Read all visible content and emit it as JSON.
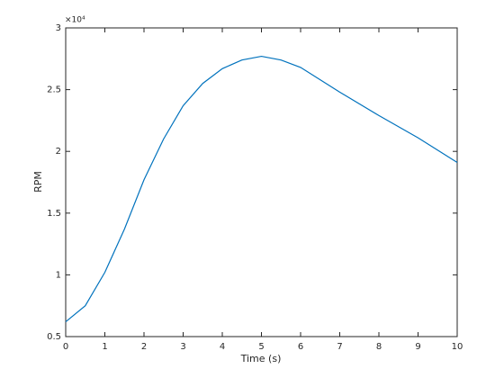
{
  "chart_data": {
    "type": "line",
    "xlabel": "Time (s)",
    "ylabel": "RPM",
    "y_exponent": "×10⁴",
    "x": [
      0,
      0.5,
      1,
      1.5,
      2,
      2.5,
      3,
      3.5,
      4,
      4.5,
      5,
      5.5,
      6,
      6.5,
      7,
      8,
      9,
      10
    ],
    "series": [
      {
        "color": "#0072bd",
        "values": [
          0.62,
          0.75,
          1.02,
          1.37,
          1.77,
          2.1,
          2.37,
          2.55,
          2.67,
          2.74,
          2.77,
          2.74,
          2.68,
          2.58,
          2.48,
          2.29,
          2.11,
          1.91
        ]
      }
    ],
    "xlim": [
      0,
      10
    ],
    "ylim": [
      0.5,
      3
    ],
    "xticks": [
      0,
      1,
      2,
      3,
      4,
      5,
      6,
      7,
      8,
      9,
      10
    ],
    "yticks": [
      0.5,
      1,
      1.5,
      2,
      2.5,
      3
    ]
  }
}
